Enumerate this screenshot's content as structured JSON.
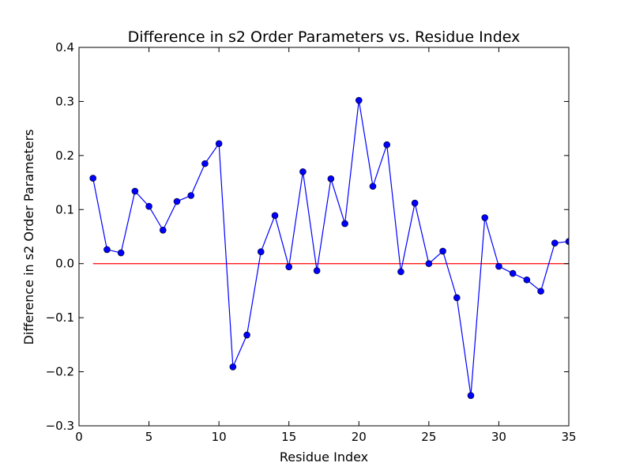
{
  "chart_data": {
    "type": "line",
    "title": "Difference in s2 Order Parameters vs. Residue Index",
    "xlabel": "Residue Index",
    "ylabel": "Difference in s2 Order Parameters",
    "xlim": [
      0,
      35
    ],
    "ylim": [
      -0.3,
      0.4
    ],
    "x_ticks": [
      0,
      5,
      10,
      15,
      20,
      25,
      30,
      35
    ],
    "y_ticks": [
      -0.3,
      -0.2,
      -0.1,
      0.0,
      0.1,
      0.2,
      0.3,
      0.4
    ],
    "x_tick_labels": [
      "0",
      "5",
      "10",
      "15",
      "20",
      "25",
      "30",
      "35"
    ],
    "y_tick_labels": [
      "−0.3",
      "−0.2",
      "−0.1",
      "0.0",
      "0.1",
      "0.2",
      "0.3",
      "0.4"
    ],
    "grid": false,
    "series": [
      {
        "color": "#0000ff",
        "marker": "circle",
        "x": [
          1,
          2,
          3,
          4,
          5,
          6,
          7,
          8,
          9,
          10,
          11,
          12,
          13,
          14,
          15,
          16,
          17,
          18,
          19,
          20,
          21,
          22,
          23,
          24,
          25,
          26,
          27,
          28,
          29,
          30,
          31,
          32,
          33,
          34,
          35
        ],
        "values": [
          0.158,
          0.026,
          0.02,
          0.134,
          0.106,
          0.062,
          0.115,
          0.126,
          0.185,
          0.222,
          -0.191,
          -0.132,
          0.022,
          0.089,
          -0.006,
          0.17,
          -0.013,
          0.157,
          0.074,
          0.302,
          0.143,
          0.22,
          -0.015,
          0.112,
          0.0,
          0.023,
          -0.063,
          -0.244,
          0.085,
          -0.005,
          -0.018,
          -0.03,
          -0.051,
          0.038,
          0.041
        ]
      }
    ],
    "reference_line": {
      "y": 0.0,
      "x_range": [
        1,
        35
      ],
      "color": "#ff0000"
    }
  }
}
